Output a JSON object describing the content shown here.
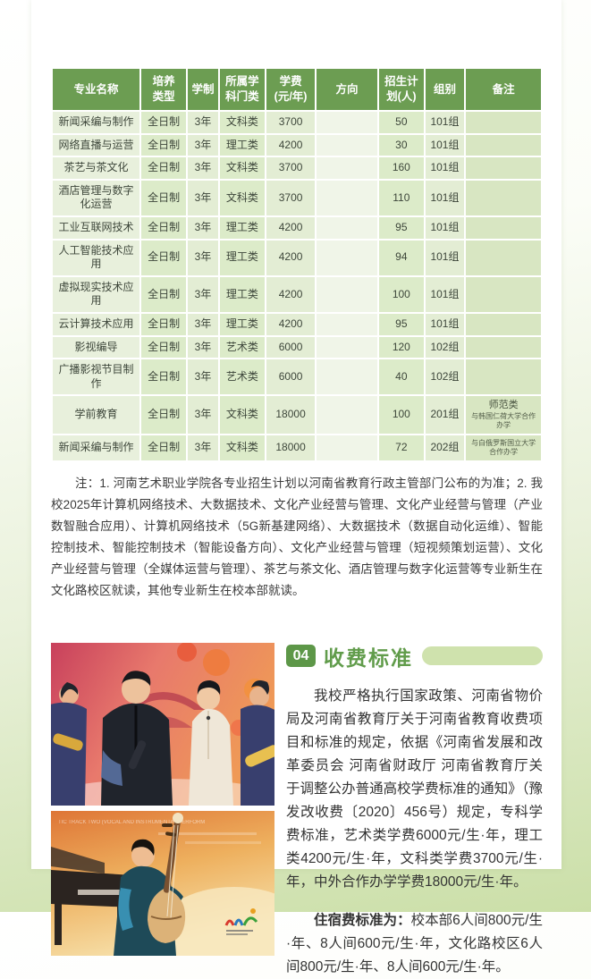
{
  "colors": {
    "table_header_green": "#6c9d52",
    "section_badge_green": "#5d9748",
    "section_title_green": "#619c4b",
    "section_pill_green": "#cfe2ad",
    "page_edge_green": "#cbdfa8"
  },
  "table": {
    "columns": [
      "专业名称",
      "培养\n类型",
      "学制",
      "所属学\n科门类",
      "学费\n(元/年)",
      "方向",
      "招生计\n划(人)",
      "组别",
      "备注"
    ],
    "rows": [
      {
        "name": "新闻采编与制作",
        "type": "全日制",
        "duration": "3年",
        "category": "文科类",
        "fee": "3700",
        "direction": "",
        "plan": "50",
        "group": "101组",
        "remark_main": "",
        "remark_sub": ""
      },
      {
        "name": "网络直播与运营",
        "type": "全日制",
        "duration": "3年",
        "category": "理工类",
        "fee": "4200",
        "direction": "",
        "plan": "30",
        "group": "101组",
        "remark_main": "",
        "remark_sub": ""
      },
      {
        "name": "茶艺与茶文化",
        "type": "全日制",
        "duration": "3年",
        "category": "文科类",
        "fee": "3700",
        "direction": "",
        "plan": "160",
        "group": "101组",
        "remark_main": "",
        "remark_sub": ""
      },
      {
        "name": "酒店管理与数字化运营",
        "type": "全日制",
        "duration": "3年",
        "category": "文科类",
        "fee": "3700",
        "direction": "",
        "plan": "110",
        "group": "101组",
        "remark_main": "",
        "remark_sub": ""
      },
      {
        "name": "工业互联网技术",
        "type": "全日制",
        "duration": "3年",
        "category": "理工类",
        "fee": "4200",
        "direction": "",
        "plan": "95",
        "group": "101组",
        "remark_main": "",
        "remark_sub": ""
      },
      {
        "name": "人工智能技术应用",
        "type": "全日制",
        "duration": "3年",
        "category": "理工类",
        "fee": "4200",
        "direction": "",
        "plan": "94",
        "group": "101组",
        "remark_main": "",
        "remark_sub": ""
      },
      {
        "name": "虚拟现实技术应用",
        "type": "全日制",
        "duration": "3年",
        "category": "理工类",
        "fee": "4200",
        "direction": "",
        "plan": "100",
        "group": "101组",
        "remark_main": "",
        "remark_sub": ""
      },
      {
        "name": "云计算技术应用",
        "type": "全日制",
        "duration": "3年",
        "category": "理工类",
        "fee": "4200",
        "direction": "",
        "plan": "95",
        "group": "101组",
        "remark_main": "",
        "remark_sub": ""
      },
      {
        "name": "影视编导",
        "type": "全日制",
        "duration": "3年",
        "category": "艺术类",
        "fee": "6000",
        "direction": "",
        "plan": "120",
        "group": "102组",
        "remark_main": "",
        "remark_sub": ""
      },
      {
        "name": "广播影视节目制作",
        "type": "全日制",
        "duration": "3年",
        "category": "艺术类",
        "fee": "6000",
        "direction": "",
        "plan": "40",
        "group": "102组",
        "remark_main": "",
        "remark_sub": ""
      },
      {
        "name": "学前教育",
        "type": "全日制",
        "duration": "3年",
        "category": "文科类",
        "fee": "18000",
        "direction": "",
        "plan": "100",
        "group": "201组",
        "remark_main": "师范类",
        "remark_sub": "与韩国仁荷大学合作办学"
      },
      {
        "name": "新闻采编与制作",
        "type": "全日制",
        "duration": "3年",
        "category": "文科类",
        "fee": "18000",
        "direction": "",
        "plan": "72",
        "group": "202组",
        "remark_main": "",
        "remark_sub": "与白俄罗斯国立大学合作办学"
      }
    ]
  },
  "note": "注：1. 河南艺术职业学院各专业招生计划以河南省教育行政主管部门公布的为准；2. 我校2025年计算机网络技术、大数据技术、文化产业经营与管理、文化产业经营与管理（产业数智融合应用）、计算机网络技术（5G新基建网络）、大数据技术（数据自动化运维）、智能控制技术、智能控制技术（智能设备方向）、文化产业经营与管理（短视频策划运营）、文化产业经营与管理（全媒体运营与管理）、茶艺与茶文化、酒店管理与数字化运营等专业新生在文化路校区就读，其他专业新生在校本部就读。",
  "section": {
    "number": "04",
    "title": "收费标准"
  },
  "fees": {
    "para1": "我校严格执行国家政策、河南省物价局及河南省教育厅关于河南省教育收费项目和标准的规定，依据《河南省发展和改革委员会 河南省财政厅 河南省教育厅关于调整公办普通高校学费标准的通知》（豫发改收费〔2020〕456号）规定，专科学费标准，艺术类学费6000元/生·年，理工类4200元/生·年，文科类学费3700元/生·年，中外合作办学学费18000元/生·年。",
    "para2_lead": "住宿费标准为：",
    "para2_text": "校本部6人间800元/生·年、8人间600元/生·年，文化路校区6人间800元/生·年、8人间600元/生·年。"
  },
  "photos": {
    "photo2_overlay_text": "TIC TRACK TWO (VOCAL AND INSTRUMENTAL PERFORM"
  }
}
